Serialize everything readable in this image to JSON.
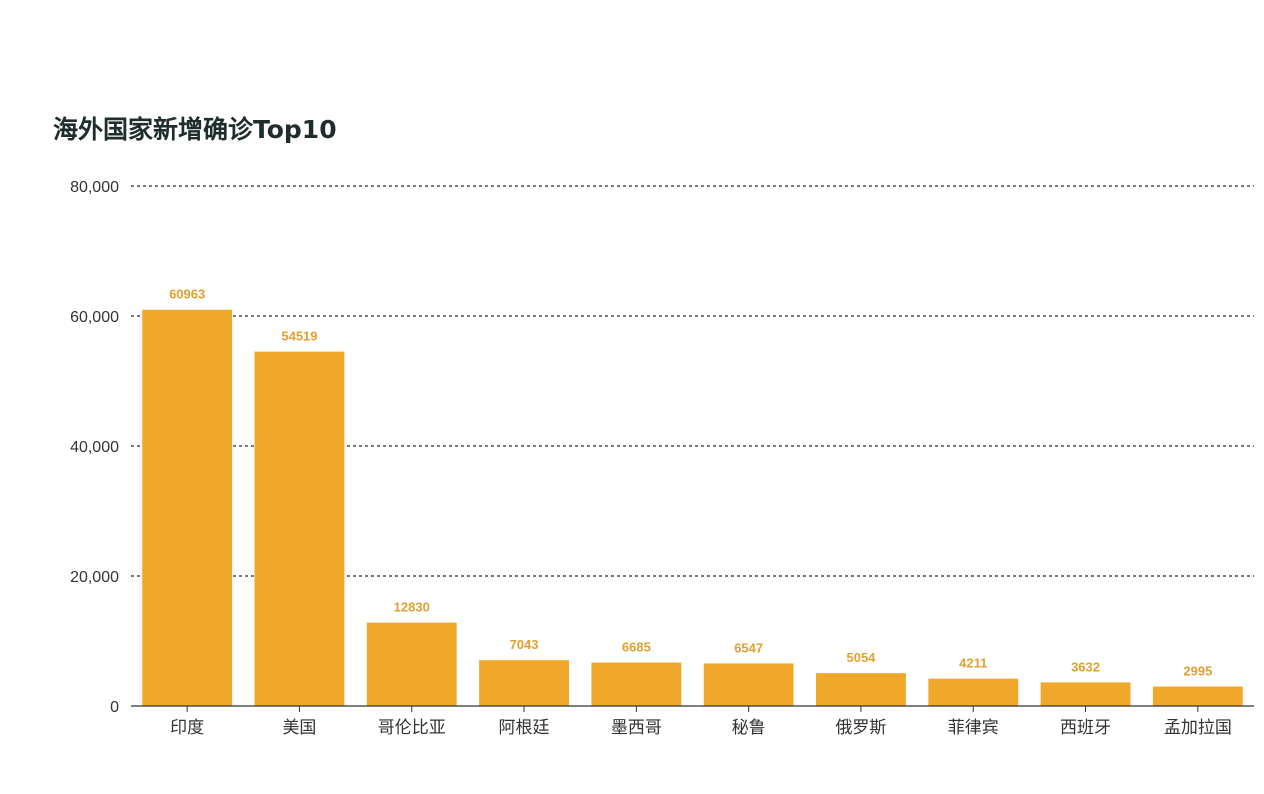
{
  "chart_data": {
    "type": "bar",
    "title": "海外国家新增确诊Top10",
    "categories": [
      "印度",
      "美国",
      "哥伦比亚",
      "阿根廷",
      "墨西哥",
      "秘鲁",
      "俄罗斯",
      "菲律宾",
      "西班牙",
      "孟加拉国"
    ],
    "values": [
      60963,
      54519,
      12830,
      7043,
      6685,
      6547,
      5054,
      4211,
      3632,
      2995
    ],
    "data_labels": [
      "60963",
      "54519",
      "12830",
      "7043",
      "6685",
      "6547",
      "5054",
      "4211",
      "3632",
      "2995"
    ],
    "ylim": [
      0,
      80000
    ],
    "yticks": [
      0,
      20000,
      40000,
      60000,
      80000
    ],
    "ytick_labels": [
      "0",
      "20,000",
      "40,000",
      "60,000",
      "80,000"
    ],
    "grid": true,
    "grid_style": "dashed",
    "xlabel": "",
    "ylabel": "",
    "bar_color": "#f0a82b",
    "label_color": "#e0a030"
  }
}
